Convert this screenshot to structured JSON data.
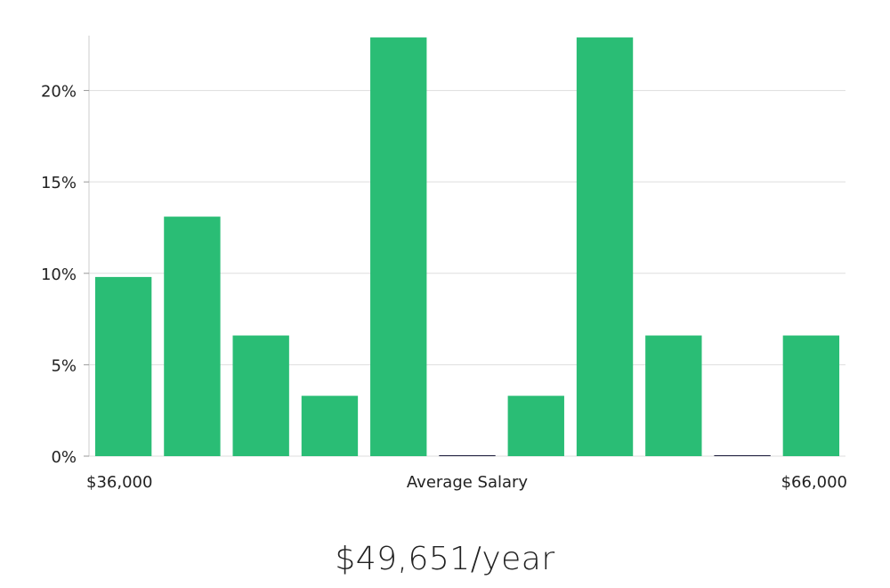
{
  "chart_data": {
    "type": "bar",
    "xlabel": "Average Salary",
    "x_range_labels": {
      "min": "$36,000",
      "max": "$66,000"
    },
    "ylim": [
      0,
      23
    ],
    "yticks": [
      0,
      5,
      10,
      15,
      20
    ],
    "ytick_labels": [
      "0%",
      "5%",
      "10%",
      "15%",
      "20%"
    ],
    "grid": true,
    "bar_color": "#2abd75",
    "zero_bar_color": "#1a1a3a",
    "values": [
      9.8,
      13.1,
      6.6,
      3.3,
      22.9,
      0,
      3.3,
      22.9,
      6.6,
      0,
      6.6
    ]
  },
  "summary": {
    "average_salary_label": "$49,651/year"
  }
}
